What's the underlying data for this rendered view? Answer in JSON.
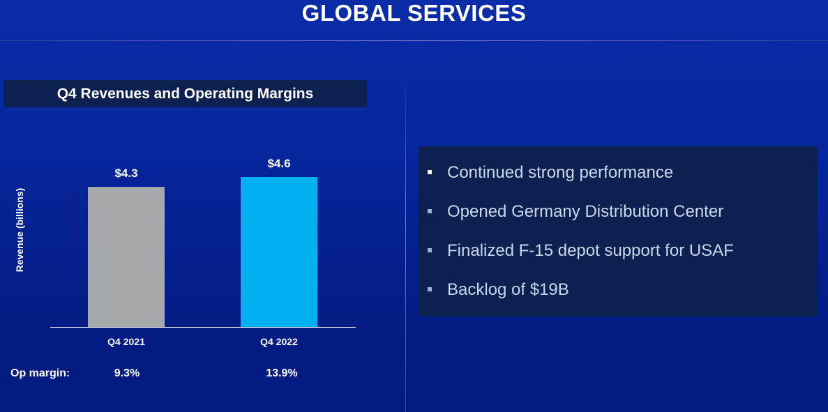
{
  "slide": {
    "title": "GLOBAL SERVICES",
    "chart_header": "Q4 Revenues and Operating Margins",
    "op_margin_label": "Op margin:",
    "op_margins": [
      "9.3%",
      "13.9%"
    ]
  },
  "bullets": [
    "Continued strong performance",
    "Opened Germany Distribution Center",
    "Finalized F-15 depot support for USAF",
    "Backlog of $19B"
  ],
  "chart_data": {
    "type": "bar",
    "title": "Q4 Revenues and Operating Margins",
    "categories": [
      "Q4 2021",
      "Q4 2022"
    ],
    "values": [
      4.3,
      4.6
    ],
    "data_labels": [
      "$4.3",
      "$4.6"
    ],
    "colors": [
      "#a6a9ab",
      "#00b0f0"
    ],
    "xlabel": "",
    "ylabel": "Revenue (billions)",
    "ylim": [
      0,
      4.6
    ]
  }
}
